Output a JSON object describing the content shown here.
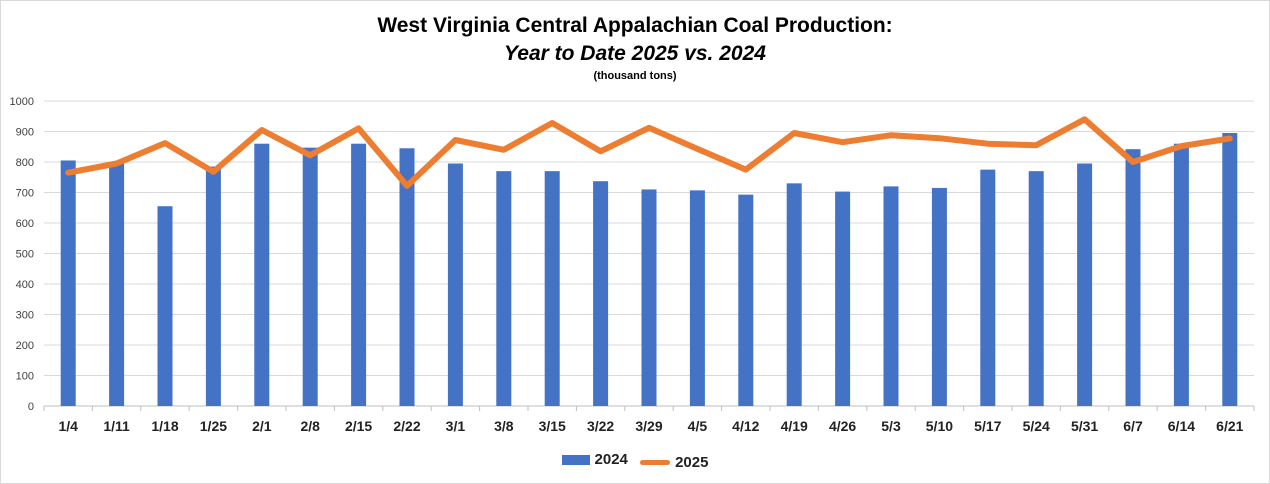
{
  "chart_data": {
    "type": "bar",
    "title": "West Virginia Central Appalachian Coal Production:",
    "subtitle": "Year to Date 2025 vs. 2024",
    "units_note": "(thousand tons)",
    "xlabel": "",
    "ylabel": "",
    "ylim": [
      0,
      1000
    ],
    "yticks": [
      "0",
      "100",
      "200",
      "300",
      "400",
      "500",
      "600",
      "700",
      "800",
      "900",
      "1000"
    ],
    "grid": true,
    "legend_position": "bottom",
    "categories": [
      "1/4",
      "1/11",
      "1/18",
      "1/25",
      "2/1",
      "2/8",
      "2/15",
      "2/22",
      "3/1",
      "3/8",
      "3/15",
      "3/22",
      "3/29",
      "4/5",
      "4/12",
      "4/19",
      "4/26",
      "5/3",
      "5/10",
      "5/17",
      "5/24",
      "5/31",
      "6/7",
      "6/14",
      "6/21"
    ],
    "series": [
      {
        "name": "2024",
        "type": "bar",
        "color": "#4472c4",
        "values": [
          805,
          800,
          655,
          785,
          860,
          847,
          860,
          845,
          795,
          770,
          770,
          737,
          710,
          707,
          693,
          730,
          703,
          720,
          715,
          775,
          770,
          795,
          842,
          860,
          895
        ]
      },
      {
        "name": "2025",
        "type": "line",
        "color": "#ed7d31",
        "values": [
          765,
          795,
          862,
          768,
          905,
          822,
          910,
          722,
          872,
          840,
          928,
          835,
          912,
          843,
          775,
          895,
          865,
          888,
          878,
          860,
          855,
          940,
          800,
          852,
          877
        ]
      }
    ]
  }
}
